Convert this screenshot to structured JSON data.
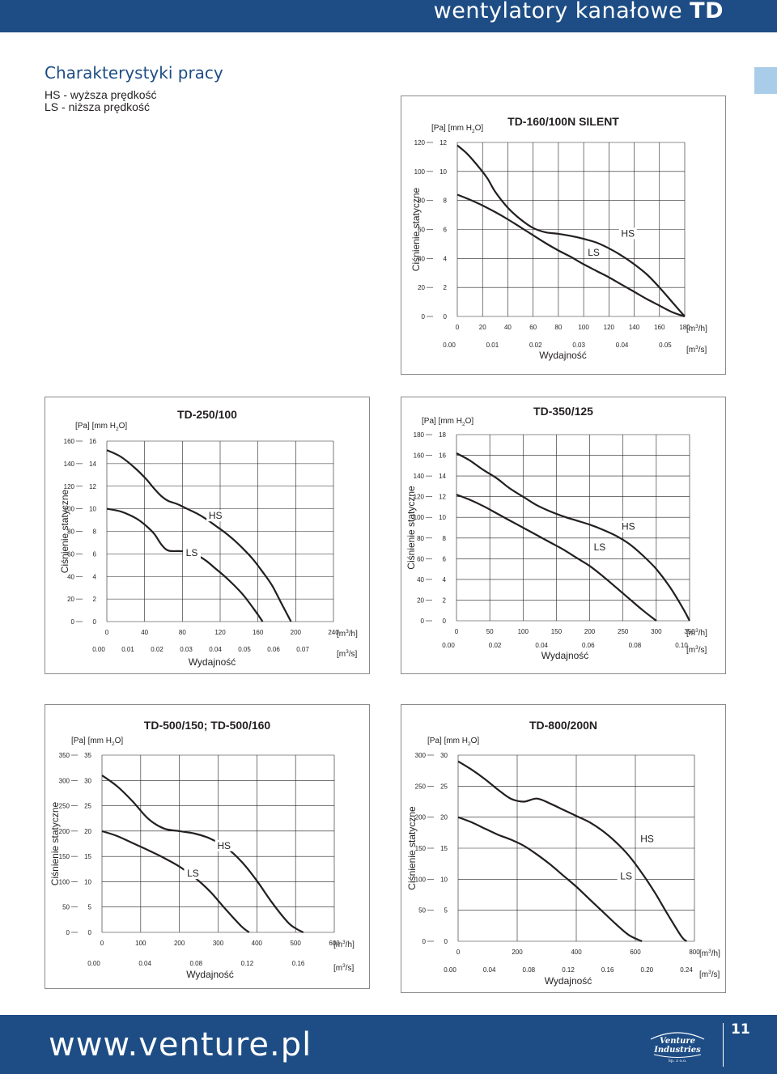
{
  "header": {
    "title_prefix": "wentylatory kanałowe",
    "title_bold": "TD"
  },
  "section": {
    "title": "Charakterystyki pracy",
    "legend_hs": "HS - wyższa prędkość",
    "legend_ls": "LS - niższa prędkość"
  },
  "footer": {
    "url": "www.venture.pl",
    "logo_line1": "Venture",
    "logo_line2": "Industries",
    "logo_line3": "Sp. z o.o.",
    "page_number": "11"
  },
  "colors": {
    "brand": "#1e4d85",
    "tab": "#a9cce9",
    "curve": "#231f20",
    "grid": "#231f20"
  },
  "chart_data": [
    {
      "type": "line",
      "title": "TD-160/100N SILENT",
      "pressure_unit_label": "[Pa] [mm H2O]",
      "ylabel": "Ciśnienie statyczne",
      "xlabel": "Wydajność",
      "x_unit_label": "[m3/h]",
      "x2_unit_label": "[m3/s]",
      "xlim": [
        0,
        180
      ],
      "ylim": [
        0,
        120
      ],
      "x_ticks": [
        "0",
        "20",
        "40",
        "60",
        "80",
        "100",
        "120",
        "140",
        "160",
        "180"
      ],
      "y_ticks_pa": [
        "0",
        "20",
        "40",
        "60",
        "80",
        "100",
        "120"
      ],
      "y_ticks_mm": [
        "0",
        "2",
        "4",
        "6",
        "8",
        "10",
        "12"
      ],
      "x2_ticks": [
        "0.00",
        "0.01",
        "0.02",
        "0.03",
        "0.04",
        "0.05"
      ],
      "series": [
        {
          "name": "HS",
          "x": [
            0,
            8,
            18,
            24,
            30,
            40,
            50,
            60,
            70,
            80,
            90,
            100,
            110,
            120,
            130,
            140,
            150,
            160,
            170,
            180
          ],
          "y": [
            118,
            112,
            102,
            95,
            86,
            75,
            67,
            61,
            58,
            57,
            55.5,
            53.5,
            51,
            47,
            42,
            36,
            29,
            20,
            10,
            0
          ]
        },
        {
          "name": "LS",
          "x": [
            0,
            10,
            20,
            30,
            40,
            50,
            60,
            70,
            80,
            90,
            100,
            110,
            120,
            130,
            140,
            150,
            160,
            170,
            180
          ],
          "y": [
            84,
            80.5,
            76.5,
            72,
            67,
            61.5,
            56,
            50.5,
            45.5,
            41,
            36,
            31.5,
            27,
            22,
            17,
            12,
            7.5,
            3,
            0
          ]
        }
      ],
      "series_labels": [
        {
          "name": "HS",
          "x": 135,
          "y": 55
        },
        {
          "name": "LS",
          "x": 108,
          "y": 42
        }
      ]
    },
    {
      "type": "line",
      "title": "TD-250/100",
      "pressure_unit_label": "[Pa] [mm H2O]",
      "ylabel": "Ciśnienie statyczne",
      "xlabel": "Wydajność",
      "x_unit_label": "[m3/h]",
      "x2_unit_label": "[m3/s]",
      "xlim": [
        0,
        240
      ],
      "ylim": [
        0,
        160
      ],
      "x_ticks": [
        "0",
        "40",
        "80",
        "120",
        "160",
        "200",
        "240"
      ],
      "y_ticks_pa": [
        "0",
        "20",
        "40",
        "60",
        "80",
        "100",
        "120",
        "140",
        "160"
      ],
      "y_ticks_mm": [
        "0",
        "2",
        "4",
        "6",
        "8",
        "10",
        "12",
        "14",
        "16"
      ],
      "x2_ticks": [
        "0.00",
        "0.01",
        "0.02",
        "0.03",
        "0.04",
        "0.05",
        "0.06",
        "0.07"
      ],
      "series": [
        {
          "name": "HS",
          "x": [
            0,
            15,
            30,
            42,
            50,
            58,
            65,
            75,
            85,
            95,
            105,
            115,
            125,
            135,
            145,
            155,
            165,
            175,
            185,
            195
          ],
          "y": [
            152,
            146,
            136,
            126,
            118,
            111,
            107,
            104,
            100,
            96,
            91,
            85,
            79,
            72,
            64,
            55,
            44,
            32,
            16,
            0
          ]
        },
        {
          "name": "LS",
          "x": [
            0,
            15,
            30,
            40,
            50,
            58,
            65,
            75,
            85,
            95,
            105,
            115,
            125,
            135,
            145,
            155,
            165
          ],
          "y": [
            100,
            97.5,
            92,
            86,
            78,
            68,
            63,
            62.5,
            62,
            59,
            54,
            47,
            40,
            32,
            23,
            12,
            0
          ]
        }
      ],
      "series_labels": [
        {
          "name": "HS",
          "x": 115,
          "y": 91
        },
        {
          "name": "LS",
          "x": 90,
          "y": 58
        }
      ]
    },
    {
      "type": "line",
      "title": "TD-350/125",
      "pressure_unit_label": "[Pa] [mm H2O]",
      "ylabel": "Ciśnienie statyczne",
      "xlabel": "Wydajność",
      "x_unit_label": "[m3/h]",
      "x2_unit_label": "[m3/s]",
      "xlim": [
        0,
        350
      ],
      "ylim": [
        0,
        180
      ],
      "x_ticks": [
        "0",
        "50",
        "100",
        "150",
        "200",
        "250",
        "300",
        "350"
      ],
      "y_ticks_pa": [
        "0",
        "20",
        "40",
        "60",
        "80",
        "100",
        "120",
        "140",
        "160",
        "180"
      ],
      "y_ticks_mm": [
        "0",
        "2",
        "4",
        "6",
        "8",
        "10",
        "12",
        "14",
        "16",
        "18"
      ],
      "x2_ticks": [
        "0.00",
        "0.02",
        "0.04",
        "0.06",
        "0.08",
        "0.10"
      ],
      "series": [
        {
          "name": "HS",
          "x": [
            0,
            20,
            40,
            60,
            80,
            100,
            120,
            140,
            160,
            180,
            200,
            220,
            240,
            260,
            280,
            300,
            320,
            340,
            350
          ],
          "y": [
            162,
            155,
            146,
            138,
            128,
            120,
            112,
            106,
            101,
            97,
            93,
            88,
            82,
            74,
            63,
            50,
            33,
            12,
            0
          ]
        },
        {
          "name": "LS",
          "x": [
            0,
            20,
            40,
            60,
            80,
            100,
            120,
            140,
            160,
            180,
            200,
            220,
            240,
            260,
            280,
            300
          ],
          "y": [
            122,
            117,
            111,
            104,
            97,
            90,
            83,
            76,
            69,
            61,
            53,
            43,
            32,
            21,
            10,
            0
          ]
        }
      ],
      "series_labels": [
        {
          "name": "HS",
          "x": 258,
          "y": 88
        },
        {
          "name": "LS",
          "x": 215,
          "y": 68
        }
      ]
    },
    {
      "type": "line",
      "title": "TD-500/150; TD-500/160",
      "pressure_unit_label": "[Pa] [mm H2O]",
      "ylabel": "Ciśnienie statyczne",
      "xlabel": "Wydajność",
      "x_unit_label": "[m3/h]",
      "x2_unit_label": "[m3/s]",
      "xlim": [
        0,
        600
      ],
      "ylim": [
        0,
        350
      ],
      "x_ticks": [
        "0",
        "100",
        "200",
        "300",
        "400",
        "500",
        "600"
      ],
      "y_ticks_pa": [
        "0",
        "50",
        "100",
        "150",
        "200",
        "250",
        "300",
        "350"
      ],
      "y_ticks_mm": [
        "0",
        "5",
        "10",
        "15",
        "20",
        "25",
        "30",
        "35"
      ],
      "x2_ticks": [
        "0.00",
        "0.04",
        "0.08",
        "0.12",
        "0.16"
      ],
      "series": [
        {
          "name": "HS",
          "x": [
            0,
            40,
            80,
            120,
            160,
            200,
            240,
            280,
            320,
            360,
            400,
            440,
            480,
            500,
            520
          ],
          "y": [
            310,
            288,
            258,
            224,
            205,
            200,
            195,
            185,
            168,
            140,
            102,
            58,
            20,
            8,
            0
          ]
        },
        {
          "name": "LS",
          "x": [
            0,
            40,
            80,
            120,
            160,
            200,
            240,
            280,
            320,
            360,
            380
          ],
          "y": [
            200,
            190,
            176,
            162,
            147,
            130,
            108,
            80,
            45,
            12,
            0
          ]
        }
      ],
      "series_labels": [
        {
          "name": "HS",
          "x": 315,
          "y": 165
        },
        {
          "name": "LS",
          "x": 235,
          "y": 110
        }
      ]
    },
    {
      "type": "line",
      "title": "TD-800/200N",
      "pressure_unit_label": "[Pa] [mm H2O]",
      "ylabel": "Ciśnienie statyczne",
      "xlabel": "Wydajność",
      "x_unit_label": "[m3/h]",
      "x2_unit_label": "[m3/s]",
      "xlim": [
        0,
        900
      ],
      "ylim": [
        0,
        300
      ],
      "x_ticks": [
        "0",
        "200",
        "400",
        "600",
        "800"
      ],
      "y_ticks_pa": [
        "0",
        "50",
        "100",
        "150",
        "200",
        "250",
        "300"
      ],
      "y_ticks_mm": [
        "0",
        "5",
        "10",
        "15",
        "20",
        "25",
        "30"
      ],
      "x2_ticks": [
        "0.00",
        "0.04",
        "0.08",
        "0.12",
        "0.16",
        "0.20",
        "0.24"
      ],
      "series": [
        {
          "name": "HS",
          "x": [
            0,
            50,
            100,
            150,
            200,
            250,
            300,
            350,
            400,
            450,
            500,
            550,
            600,
            650,
            700,
            750,
            800,
            850,
            870
          ],
          "y": [
            290,
            277,
            262,
            245,
            230,
            225,
            230,
            222,
            212,
            202,
            192,
            178,
            160,
            138,
            110,
            78,
            42,
            8,
            0
          ]
        },
        {
          "name": "LS",
          "x": [
            0,
            50,
            100,
            150,
            200,
            250,
            300,
            350,
            400,
            450,
            500,
            550,
            600,
            650,
            700
          ],
          "y": [
            200,
            192,
            182,
            172,
            164,
            154,
            140,
            124,
            106,
            88,
            68,
            48,
            28,
            10,
            0
          ]
        }
      ],
      "series_labels": [
        {
          "name": "HS",
          "x": 720,
          "y": 160
        },
        {
          "name": "LS",
          "x": 640,
          "y": 100
        }
      ]
    }
  ]
}
